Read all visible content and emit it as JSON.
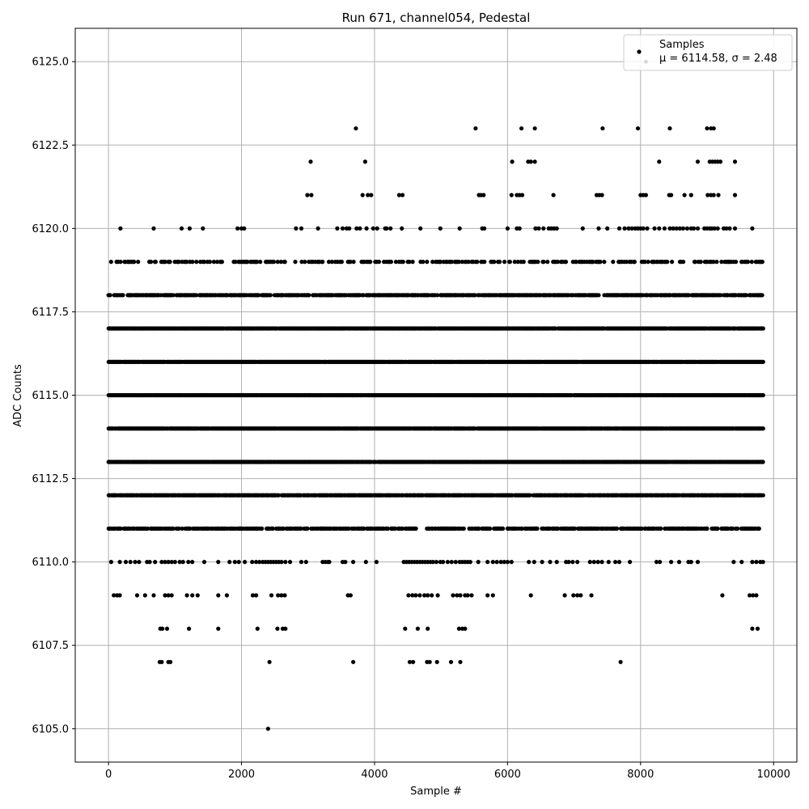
{
  "chart_data": {
    "type": "scatter",
    "title": "Run 671, channel054, Pedestal",
    "xlabel": "Sample #",
    "ylabel": "ADC Counts",
    "xlim": [
      -500,
      10350
    ],
    "ylim": [
      6104,
      6126
    ],
    "xticks": [
      0,
      2000,
      4000,
      6000,
      8000,
      10000
    ],
    "xtick_labels": [
      "0",
      "2000",
      "4000",
      "6000",
      "8000",
      "10000"
    ],
    "yticks": [
      6105.0,
      6107.5,
      6110.0,
      6112.5,
      6115.0,
      6117.5,
      6120.0,
      6122.5,
      6125.0
    ],
    "ytick_labels": [
      "6105.0",
      "6107.5",
      "6110.0",
      "6112.5",
      "6115.0",
      "6117.5",
      "6120.0",
      "6122.5",
      "6125.0"
    ],
    "grid": true,
    "legend": {
      "placement": "top-right",
      "series_label": "Samples",
      "stats_label": "μ = 6114.58, σ = 2.48"
    },
    "series": [
      {
        "name": "Samples",
        "color": "#000000",
        "mean": 6114.58,
        "std": 2.48,
        "x_range": [
          0,
          9840
        ],
        "levels": [
          {
            "y": 6125,
            "x": [
              8080
            ]
          },
          {
            "y": 6123,
            "x": [
              3720,
              5520,
              6210,
              6410,
              7430,
              7960,
              8440,
              9000,
              9060,
              9100
            ]
          },
          {
            "y": 6122,
            "x": [
              3040,
              3860,
              6070,
              6310,
              6350,
              6410,
              8280,
              8860,
              9040,
              9080,
              9120,
              9160,
              9200,
              9420
            ]
          },
          {
            "y": 6121,
            "x": [
              2990,
              3050,
              3820,
              3900,
              3950,
              4370,
              4420,
              5570,
              5600,
              5640,
              6060,
              6140,
              6180,
              6220,
              6690,
              7340,
              7380,
              7420,
              8000,
              8040,
              8080,
              8430,
              8460,
              8660,
              8760,
              9010,
              9060,
              9100,
              9170,
              9420
            ]
          },
          {
            "y": 6120,
            "x": [
              180,
              680,
              1100,
              1220,
              1420,
              1940,
              2000,
              2040,
              2820,
              2900,
              3150,
              3440,
              3520,
              3580,
              3620,
              3730,
              3780,
              3880,
              3980,
              4040,
              4160,
              4180,
              4240,
              4410,
              4690,
              4990,
              5280,
              5620,
              5650,
              6000,
              6140,
              6180,
              6420,
              6470,
              6540,
              6620,
              6660,
              6700,
              6740,
              7130,
              7370,
              7500,
              7680,
              7760,
              7820,
              7870,
              7920,
              7960,
              8000,
              8040,
              8100,
              8210,
              8280,
              8360,
              8440,
              8490,
              8540,
              8590,
              8640,
              8700,
              8760,
              8800,
              8860,
              8960,
              9000,
              9040,
              9070,
              9110,
              9160,
              9250,
              9290,
              9340,
              9420,
              9680
            ]
          }
        ],
        "dense_levels": [
          {
            "y": 6119,
            "density": 0.3
          },
          {
            "y": 6118,
            "density": 0.7
          },
          {
            "y": 6117,
            "density": 0.9
          },
          {
            "y": 6116,
            "density": 0.97
          },
          {
            "y": 6115,
            "density": 0.97
          },
          {
            "y": 6114,
            "density": 0.97
          },
          {
            "y": 6113,
            "density": 0.95
          },
          {
            "y": 6112,
            "density": 0.85
          },
          {
            "y": 6111,
            "density": 0.6
          }
        ],
        "sparse_levels": [
          {
            "y": 6110,
            "x": [
              40,
              170,
              260,
              330,
              400,
              460,
              580,
              620,
              700,
              800,
              850,
              900,
              950,
              1000,
              1070,
              1120,
              1200,
              1260,
              1440,
              1650,
              1820,
              1900,
              1960,
              2050,
              2160,
              2220,
              2270,
              2320,
              2360,
              2400,
              2440,
              2480,
              2520,
              2560,
              2600,
              2660,
              2730,
              2900,
              2970,
              3220,
              3260,
              3300,
              3320,
              3520,
              3560,
              3680,
              3870,
              4030,
              4440,
              4480,
              4520,
              4560,
              4600,
              4640,
              4680,
              4720,
              4760,
              4800,
              4840,
              4880,
              4930,
              4990,
              5030,
              5100,
              5160,
              5220,
              5280,
              5320,
              5360,
              5400,
              5440,
              5560,
              5700,
              5780,
              5840,
              5900,
              5950,
              6000,
              6060,
              6320,
              6400,
              6520,
              6640,
              6740,
              6880,
              6920,
              6980,
              7050,
              7240,
              7300,
              7360,
              7420,
              7520,
              7620,
              7680,
              7840,
              8240,
              8290,
              8460,
              8580,
              8720,
              8760,
              8860,
              9400,
              9520,
              9680,
              9740,
              9800,
              9840
            ]
          },
          {
            "y": 6109,
            "x": [
              80,
              130,
              170,
              430,
              550,
              680,
              850,
              900,
              950,
              1180,
              1260,
              1340,
              1650,
              1780,
              2170,
              2220,
              2450,
              2550,
              2600,
              2650,
              3600,
              3640,
              4510,
              4570,
              4620,
              4680,
              4750,
              4800,
              4860,
              4950,
              5180,
              5240,
              5290,
              5360,
              5400,
              5460,
              5700,
              5780,
              6350,
              6860,
              6990,
              7050,
              7100,
              7260,
              9230,
              9640,
              9690,
              9740
            ]
          },
          {
            "y": 6108,
            "x": [
              780,
              810,
              880,
              1210,
              1650,
              2240,
              2540,
              2620,
              2660,
              4460,
              4650,
              4800,
              5270,
              5320,
              5360,
              9680,
              9760
            ]
          },
          {
            "y": 6107,
            "x": [
              770,
              800,
              900,
              930,
              2420,
              3680,
              4530,
              4580,
              4790,
              4830,
              4940,
              5150,
              5290,
              7700
            ]
          },
          {
            "y": 6105,
            "x": [
              2400
            ]
          }
        ]
      }
    ]
  }
}
